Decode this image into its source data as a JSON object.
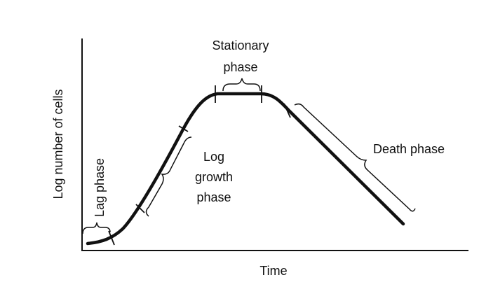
{
  "axes": {
    "y_label": "Log number of cells",
    "x_label": "Time"
  },
  "phases": [
    {
      "lines": [
        "Lag phase"
      ]
    },
    {
      "lines": [
        "Log",
        "growth",
        "phase"
      ]
    },
    {
      "lines": [
        "Stationary",
        "phase"
      ]
    },
    {
      "lines": [
        "Death phase"
      ]
    }
  ]
}
